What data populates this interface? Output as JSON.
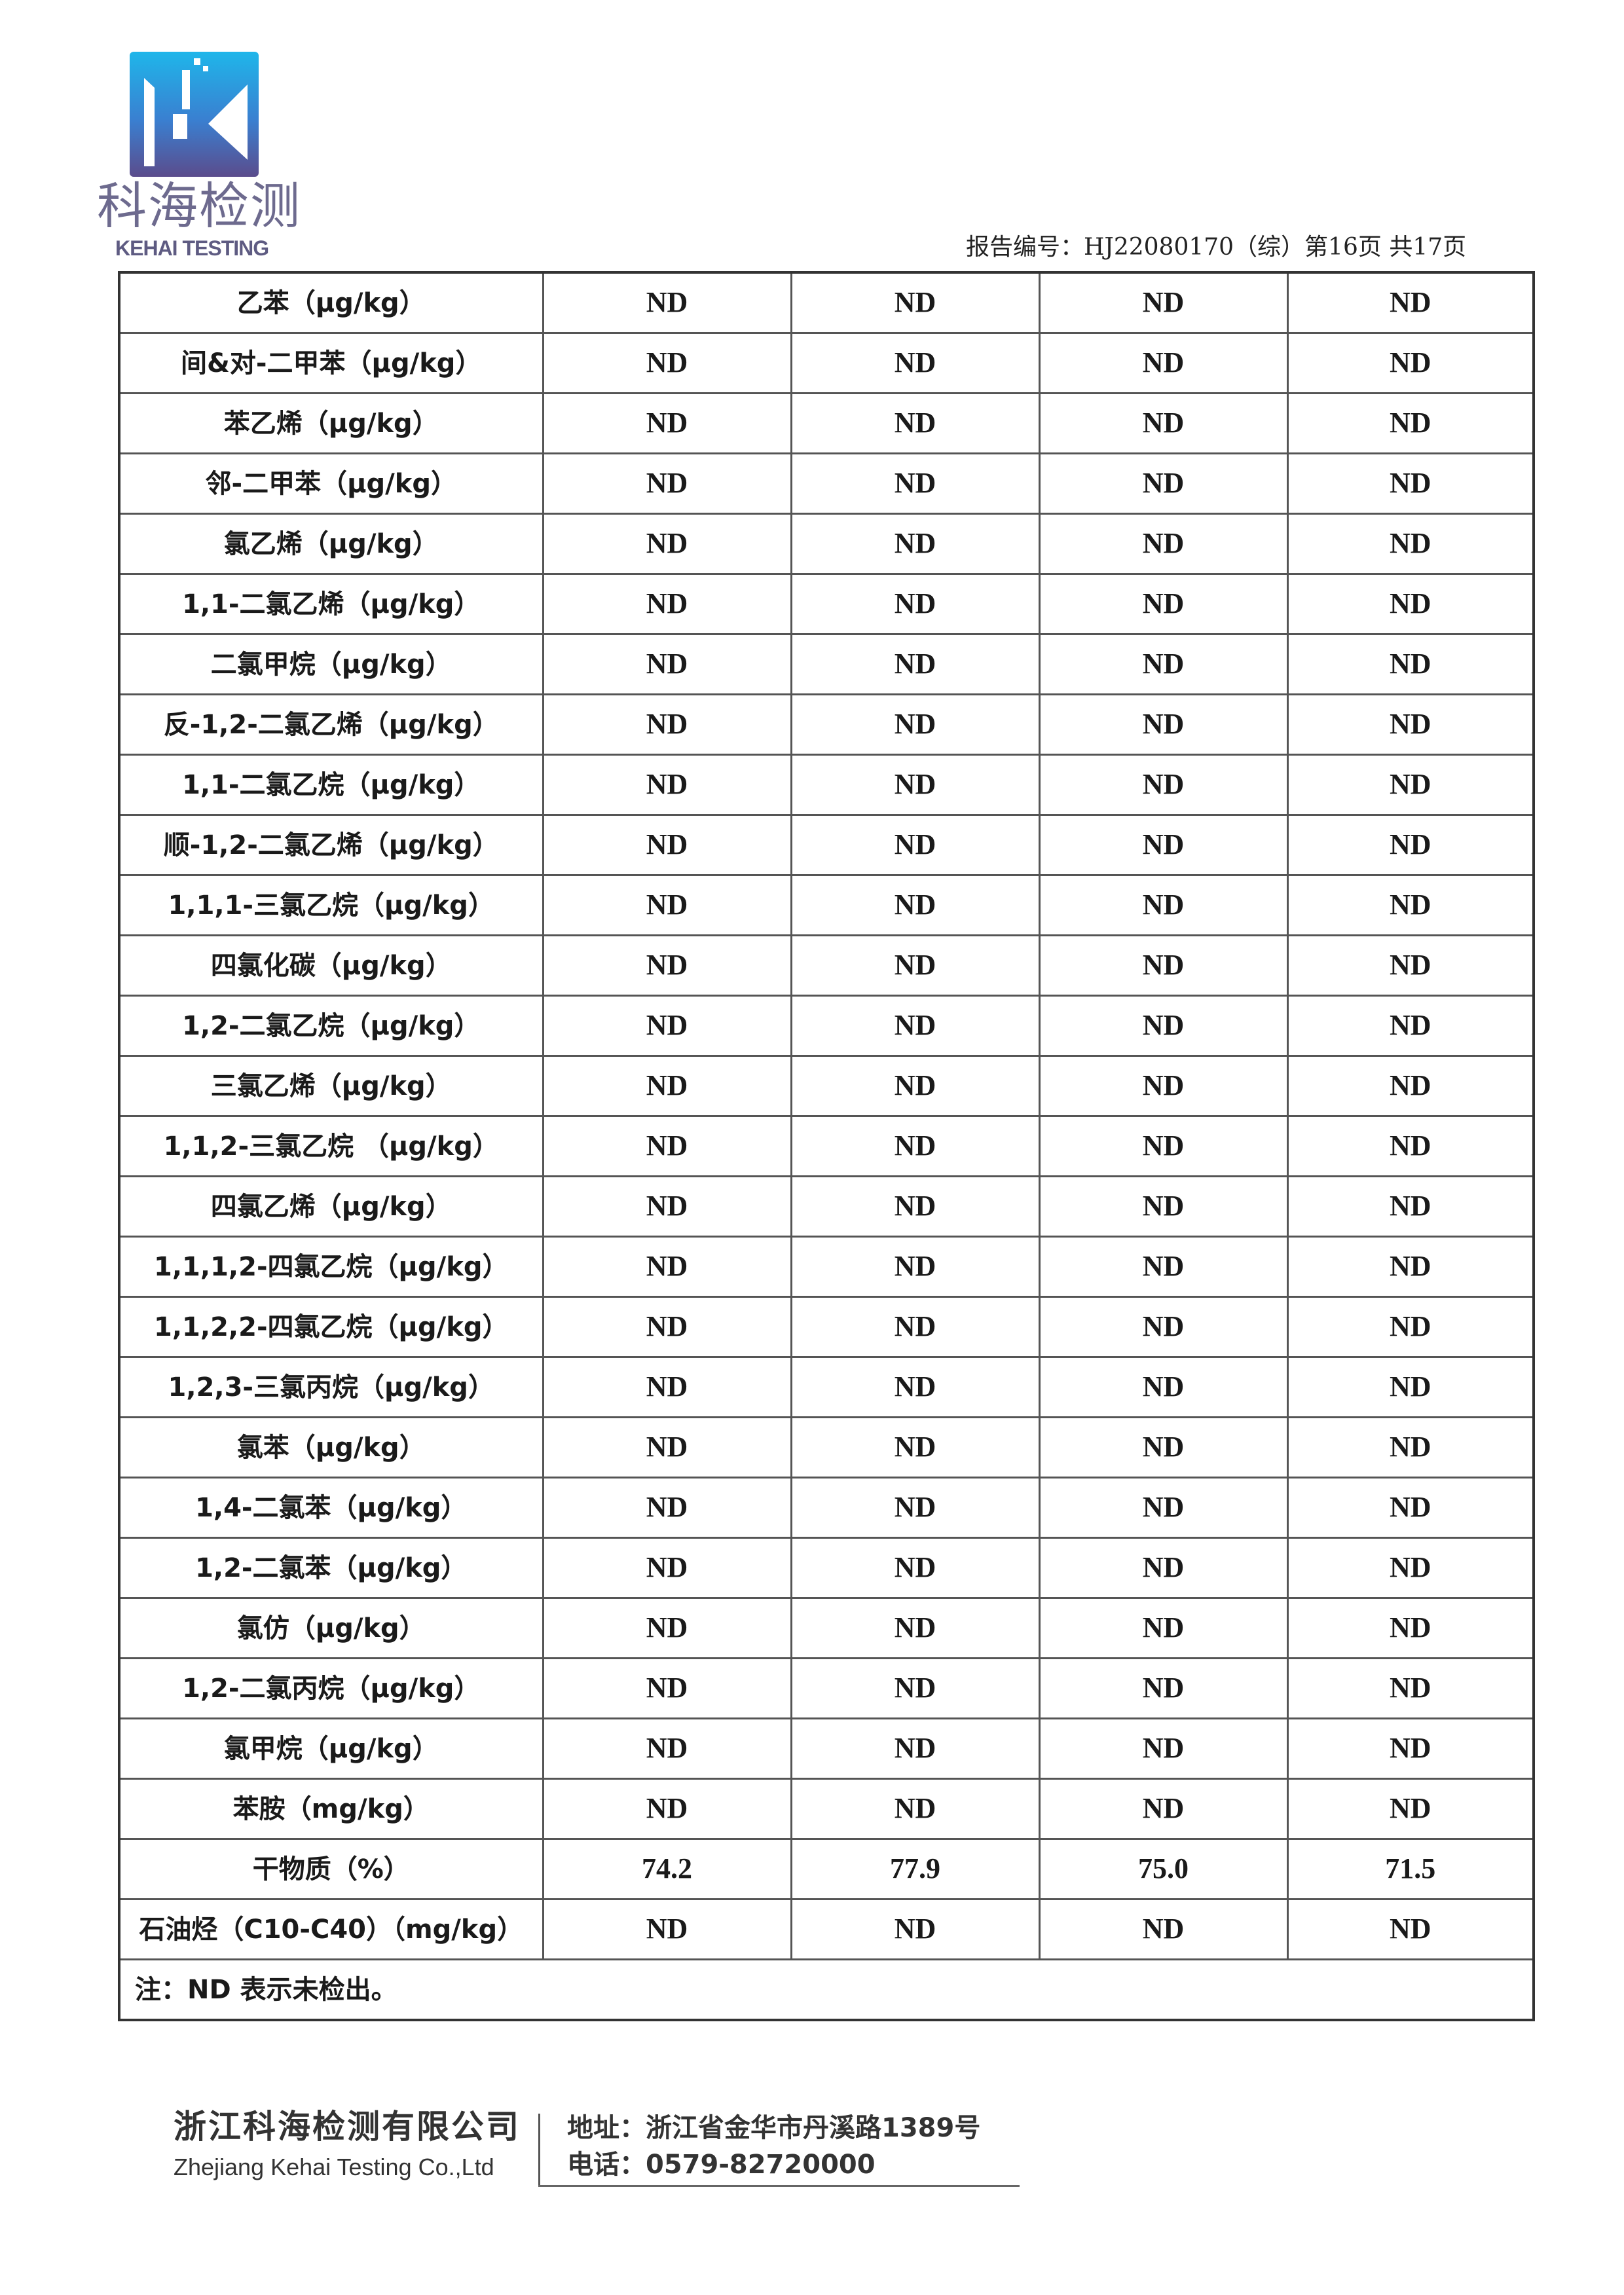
{
  "header": {
    "logo_cn": "科海检测",
    "logo_en": "KEHAI TESTING",
    "report_number": "报告编号：HJ22080170（综）第16页 共17页",
    "logo_colors": {
      "top": "#1fb6ea",
      "bottom": "#5b4c8c"
    }
  },
  "table": {
    "rows": [
      {
        "item": "乙苯（μg/kg）",
        "values": [
          "ND",
          "ND",
          "ND",
          "ND"
        ]
      },
      {
        "item": "间&对-二甲苯（μg/kg）",
        "values": [
          "ND",
          "ND",
          "ND",
          "ND"
        ]
      },
      {
        "item": "苯乙烯（μg/kg）",
        "values": [
          "ND",
          "ND",
          "ND",
          "ND"
        ]
      },
      {
        "item": "邻-二甲苯（μg/kg）",
        "values": [
          "ND",
          "ND",
          "ND",
          "ND"
        ]
      },
      {
        "item": "氯乙烯（μg/kg）",
        "values": [
          "ND",
          "ND",
          "ND",
          "ND"
        ]
      },
      {
        "item": "1,1-二氯乙烯（μg/kg）",
        "values": [
          "ND",
          "ND",
          "ND",
          "ND"
        ]
      },
      {
        "item": "二氯甲烷（μg/kg）",
        "values": [
          "ND",
          "ND",
          "ND",
          "ND"
        ]
      },
      {
        "item": "反-1,2-二氯乙烯（μg/kg）",
        "values": [
          "ND",
          "ND",
          "ND",
          "ND"
        ]
      },
      {
        "item": "1,1-二氯乙烷（μg/kg）",
        "values": [
          "ND",
          "ND",
          "ND",
          "ND"
        ]
      },
      {
        "item": "顺-1,2-二氯乙烯（μg/kg）",
        "values": [
          "ND",
          "ND",
          "ND",
          "ND"
        ]
      },
      {
        "item": "1,1,1-三氯乙烷（μg/kg）",
        "values": [
          "ND",
          "ND",
          "ND",
          "ND"
        ]
      },
      {
        "item": "四氯化碳（μg/kg）",
        "values": [
          "ND",
          "ND",
          "ND",
          "ND"
        ]
      },
      {
        "item": "1,2-二氯乙烷（μg/kg）",
        "values": [
          "ND",
          "ND",
          "ND",
          "ND"
        ]
      },
      {
        "item": "三氯乙烯（μg/kg）",
        "values": [
          "ND",
          "ND",
          "ND",
          "ND"
        ]
      },
      {
        "item": "1,1,2-三氯乙烷 （μg/kg）",
        "values": [
          "ND",
          "ND",
          "ND",
          "ND"
        ]
      },
      {
        "item": "四氯乙烯（μg/kg）",
        "values": [
          "ND",
          "ND",
          "ND",
          "ND"
        ]
      },
      {
        "item": "1,1,1,2-四氯乙烷（μg/kg）",
        "values": [
          "ND",
          "ND",
          "ND",
          "ND"
        ]
      },
      {
        "item": "1,1,2,2-四氯乙烷（μg/kg）",
        "values": [
          "ND",
          "ND",
          "ND",
          "ND"
        ]
      },
      {
        "item": "1,2,3-三氯丙烷（μg/kg）",
        "values": [
          "ND",
          "ND",
          "ND",
          "ND"
        ]
      },
      {
        "item": "氯苯（μg/kg）",
        "values": [
          "ND",
          "ND",
          "ND",
          "ND"
        ]
      },
      {
        "item": "1,4-二氯苯（μg/kg）",
        "values": [
          "ND",
          "ND",
          "ND",
          "ND"
        ]
      },
      {
        "item": "1,2-二氯苯（μg/kg）",
        "values": [
          "ND",
          "ND",
          "ND",
          "ND"
        ]
      },
      {
        "item": "氯仿（μg/kg）",
        "values": [
          "ND",
          "ND",
          "ND",
          "ND"
        ]
      },
      {
        "item": "1,2-二氯丙烷（μg/kg）",
        "values": [
          "ND",
          "ND",
          "ND",
          "ND"
        ]
      },
      {
        "item": "氯甲烷（μg/kg）",
        "values": [
          "ND",
          "ND",
          "ND",
          "ND"
        ]
      },
      {
        "item": "苯胺（mg/kg）",
        "values": [
          "ND",
          "ND",
          "ND",
          "ND"
        ]
      },
      {
        "item": "干物质（%）",
        "values": [
          "74.2",
          "77.9",
          "75.0",
          "71.5"
        ]
      },
      {
        "item": "石油烃（C10-C40）（mg/kg）",
        "values": [
          "ND",
          "ND",
          "ND",
          "ND"
        ]
      }
    ],
    "note": "注：ND 表示未检出。"
  },
  "footer": {
    "company_cn": "浙江科海检测有限公司",
    "company_en": "Zhejiang Kehai Testing Co.,Ltd",
    "address": "地址：浙江省金华市丹溪路1389号",
    "phone": "电话：0579-82720000"
  }
}
